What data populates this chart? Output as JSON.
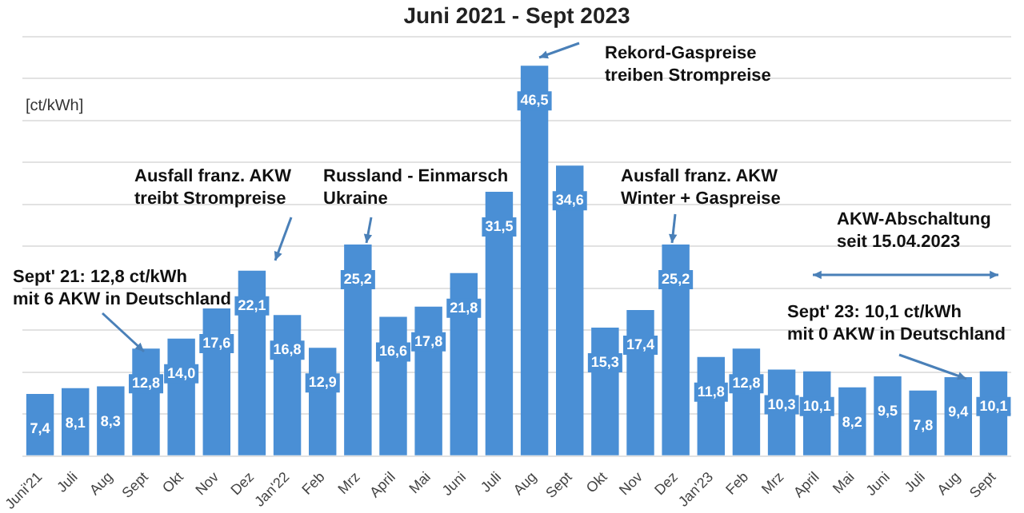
{
  "chart_data": {
    "type": "bar",
    "title": "Juni 2021 - Sept 2023",
    "ylabel": "[ct/kWh]",
    "categories": [
      "Juni'21",
      "Juli",
      "Aug",
      "Sept",
      "Okt",
      "Nov",
      "Dez",
      "Jan'22",
      "Feb",
      "Mrz",
      "April",
      "Mai",
      "Juni",
      "Juli",
      "Aug",
      "Sept",
      "Okt",
      "Nov",
      "Dez",
      "Jan'23",
      "Feb",
      "Mrz",
      "April",
      "Mai",
      "Juni",
      "Juli",
      "Aug",
      "Sept"
    ],
    "values": [
      7.4,
      8.1,
      8.3,
      12.8,
      14.0,
      17.6,
      22.1,
      16.8,
      12.9,
      25.2,
      16.6,
      17.8,
      21.8,
      31.5,
      46.5,
      34.6,
      15.3,
      17.4,
      25.2,
      11.8,
      12.8,
      10.3,
      10.1,
      8.2,
      9.5,
      7.8,
      9.4,
      10.1
    ],
    "value_labels": [
      "7,4",
      "8,1",
      "8,3",
      "12,8",
      "14,0",
      "17,6",
      "22,1",
      "16,8",
      "12,9",
      "25,2",
      "16,6",
      "17,8",
      "21,8",
      "31,5",
      "46,5",
      "34,6",
      "15,3",
      "17,4",
      "25,2",
      "11,8",
      "12,8",
      "10,3",
      "10,1",
      "8,2",
      "9,5",
      "7,8",
      "9,4",
      "10,1"
    ],
    "color": "#4a8fd5",
    "ylim": [
      0,
      50
    ],
    "yticks": [
      {
        "value": 0,
        "label": null
      },
      {
        "value": 5,
        "label": null
      },
      {
        "value": 10,
        "label": null
      },
      {
        "value": 15,
        "label": null
      },
      {
        "value": 20,
        "label": null
      },
      {
        "value": 25,
        "label": null
      },
      {
        "value": 30,
        "label": null
      },
      {
        "value": 35,
        "label": null
      },
      {
        "value": 40,
        "label": null
      },
      {
        "value": 45,
        "label": null
      },
      {
        "value": 50,
        "label": null
      }
    ],
    "grid": "y",
    "tick_labels": "x",
    "legend": false,
    "annotations": [
      "Rekord-Gaspreise\ntreiben Strompreise",
      "Ausfall franz. AKW\ntreibt Strompreise",
      "Russland - Einmarsch\nUkraine",
      "Ausfall franz. AKW\nWinter + Gaspreise",
      "AKW-Abschaltung\nseit 15.04.2023",
      "Sept' 21: 12,8 ct/kWh\nmit 6 AKW in Deutschland",
      "Sept' 23: 10,1 ct/kWh\nmit 0 AKW in Deutschland"
    ]
  }
}
